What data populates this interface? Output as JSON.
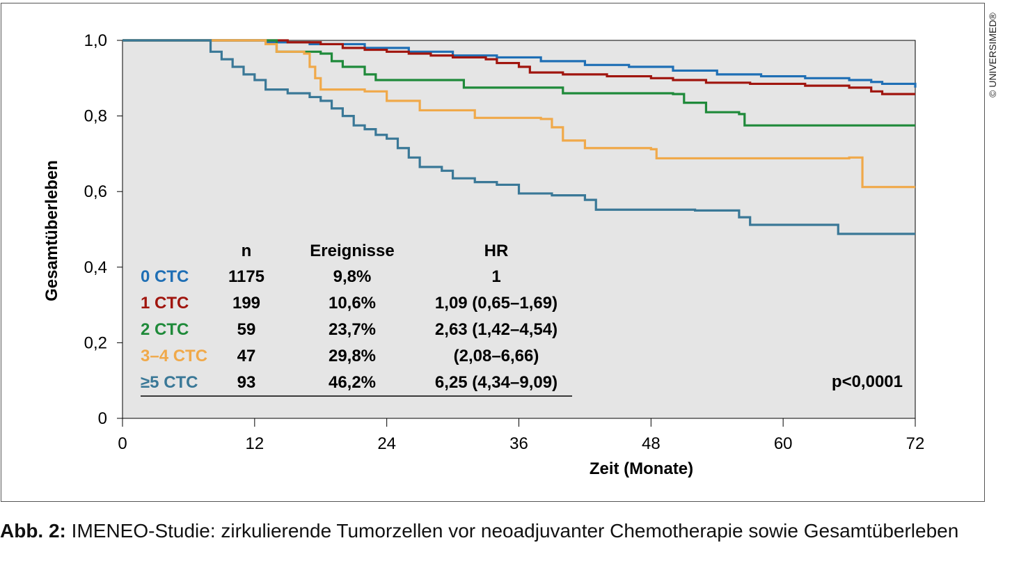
{
  "chart_data": {
    "type": "line",
    "xlabel": "Zeit (Monate)",
    "ylabel": "Gesamtüberleben",
    "xlim": [
      0,
      72
    ],
    "ylim": [
      0,
      1
    ],
    "xticks": [
      "0",
      "12",
      "24",
      "36",
      "48",
      "60",
      "72"
    ],
    "yticks": [
      "0",
      "0,2",
      "0,4",
      "0,6",
      "0,8",
      "1,0"
    ],
    "annotation": "p<0,0001",
    "series": [
      {
        "name": "0 CTC",
        "color": "#1f6fb5",
        "points": [
          [
            0,
            1
          ],
          [
            10,
            1
          ],
          [
            13,
            0.995
          ],
          [
            17,
            0.99
          ],
          [
            22,
            0.98
          ],
          [
            26,
            0.97
          ],
          [
            30,
            0.96
          ],
          [
            34,
            0.955
          ],
          [
            38,
            0.945
          ],
          [
            42,
            0.935
          ],
          [
            46,
            0.93
          ],
          [
            50,
            0.92
          ],
          [
            54,
            0.91
          ],
          [
            58,
            0.905
          ],
          [
            62,
            0.9
          ],
          [
            66,
            0.895
          ],
          [
            68,
            0.89
          ],
          [
            69,
            0.885
          ],
          [
            72,
            0.875
          ]
        ]
      },
      {
        "name": "1 CTC",
        "color": "#a0150e",
        "points": [
          [
            0,
            1
          ],
          [
            13,
            1
          ],
          [
            15,
            0.995
          ],
          [
            18,
            0.99
          ],
          [
            20,
            0.98
          ],
          [
            22,
            0.975
          ],
          [
            24,
            0.97
          ],
          [
            26,
            0.965
          ],
          [
            28,
            0.96
          ],
          [
            30,
            0.955
          ],
          [
            33,
            0.95
          ],
          [
            34,
            0.94
          ],
          [
            36,
            0.93
          ],
          [
            37,
            0.915
          ],
          [
            40,
            0.91
          ],
          [
            44,
            0.905
          ],
          [
            48,
            0.9
          ],
          [
            50,
            0.895
          ],
          [
            53,
            0.888
          ],
          [
            57,
            0.885
          ],
          [
            62,
            0.88
          ],
          [
            66,
            0.875
          ],
          [
            68,
            0.865
          ],
          [
            69,
            0.858
          ],
          [
            72,
            0.858
          ]
        ]
      },
      {
        "name": "2 CTC",
        "color": "#1f8a3a",
        "points": [
          [
            0,
            1
          ],
          [
            12,
            1
          ],
          [
            14,
            0.97
          ],
          [
            18,
            0.965
          ],
          [
            19,
            0.945
          ],
          [
            20,
            0.93
          ],
          [
            22,
            0.91
          ],
          [
            23,
            0.895
          ],
          [
            30,
            0.895
          ],
          [
            31,
            0.875
          ],
          [
            39,
            0.875
          ],
          [
            40,
            0.86
          ],
          [
            50,
            0.858
          ],
          [
            51,
            0.835
          ],
          [
            53,
            0.81
          ],
          [
            56,
            0.805
          ],
          [
            56.5,
            0.775
          ],
          [
            72,
            0.775
          ]
        ]
      },
      {
        "name": "3–4 CTC",
        "color": "#f0a94a",
        "points": [
          [
            0,
            1
          ],
          [
            12.5,
            1
          ],
          [
            13,
            0.99
          ],
          [
            14,
            0.97
          ],
          [
            16.5,
            0.965
          ],
          [
            17,
            0.93
          ],
          [
            17.5,
            0.9
          ],
          [
            18,
            0.87
          ],
          [
            22,
            0.865
          ],
          [
            24,
            0.84
          ],
          [
            27,
            0.815
          ],
          [
            32,
            0.795
          ],
          [
            38,
            0.792
          ],
          [
            39,
            0.77
          ],
          [
            40,
            0.735
          ],
          [
            42,
            0.715
          ],
          [
            48,
            0.712
          ],
          [
            48.5,
            0.688
          ],
          [
            66,
            0.69
          ],
          [
            67,
            0.69
          ],
          [
            67.2,
            0.612
          ],
          [
            72,
            0.612
          ]
        ]
      },
      {
        "name": "≥5 CTC",
        "color": "#3a7897",
        "points": [
          [
            0,
            1
          ],
          [
            7,
            1
          ],
          [
            8,
            0.97
          ],
          [
            9,
            0.95
          ],
          [
            10,
            0.93
          ],
          [
            11,
            0.91
          ],
          [
            12,
            0.895
          ],
          [
            13,
            0.87
          ],
          [
            15,
            0.86
          ],
          [
            17,
            0.85
          ],
          [
            18,
            0.84
          ],
          [
            19,
            0.82
          ],
          [
            20,
            0.8
          ],
          [
            21,
            0.775
          ],
          [
            22,
            0.765
          ],
          [
            23,
            0.75
          ],
          [
            24,
            0.74
          ],
          [
            25,
            0.715
          ],
          [
            26,
            0.69
          ],
          [
            27,
            0.665
          ],
          [
            29,
            0.655
          ],
          [
            30,
            0.635
          ],
          [
            32,
            0.625
          ],
          [
            34,
            0.618
          ],
          [
            36,
            0.595
          ],
          [
            39,
            0.59
          ],
          [
            42,
            0.578
          ],
          [
            43,
            0.552
          ],
          [
            46,
            0.552
          ],
          [
            52,
            0.55
          ],
          [
            56,
            0.532
          ],
          [
            57,
            0.512
          ],
          [
            64,
            0.512
          ],
          [
            65,
            0.488
          ],
          [
            72,
            0.488
          ]
        ]
      }
    ]
  },
  "legend_table": {
    "headers": [
      "n",
      "Ereignisse",
      "HR"
    ],
    "rows": [
      {
        "label": "0 CTC",
        "n": "1175",
        "events": "9,8%",
        "hr": "1"
      },
      {
        "label": "1 CTC",
        "n": "199",
        "events": "10,6%",
        "hr": "1,09 (0,65–1,69)"
      },
      {
        "label": "2 CTC",
        "n": "59",
        "events": "23,7%",
        "hr": "2,63 (1,42–4,54)"
      },
      {
        "label": "3–4 CTC",
        "n": "47",
        "events": "29,8%",
        "hr": "(2,08–6,66)"
      },
      {
        "label": "≥5 CTC",
        "n": "93",
        "events": "46,2%",
        "hr": "6,25 (4,34–9,09)"
      }
    ]
  },
  "copyright": "© UNIVERSIMED®",
  "caption": {
    "prefix": "Abb. 2:",
    "text": " IMENEO-Studie: zirkulierende Tumorzellen vor neoadjuvanter Chemotherapie sowie Gesamtüberleben"
  }
}
